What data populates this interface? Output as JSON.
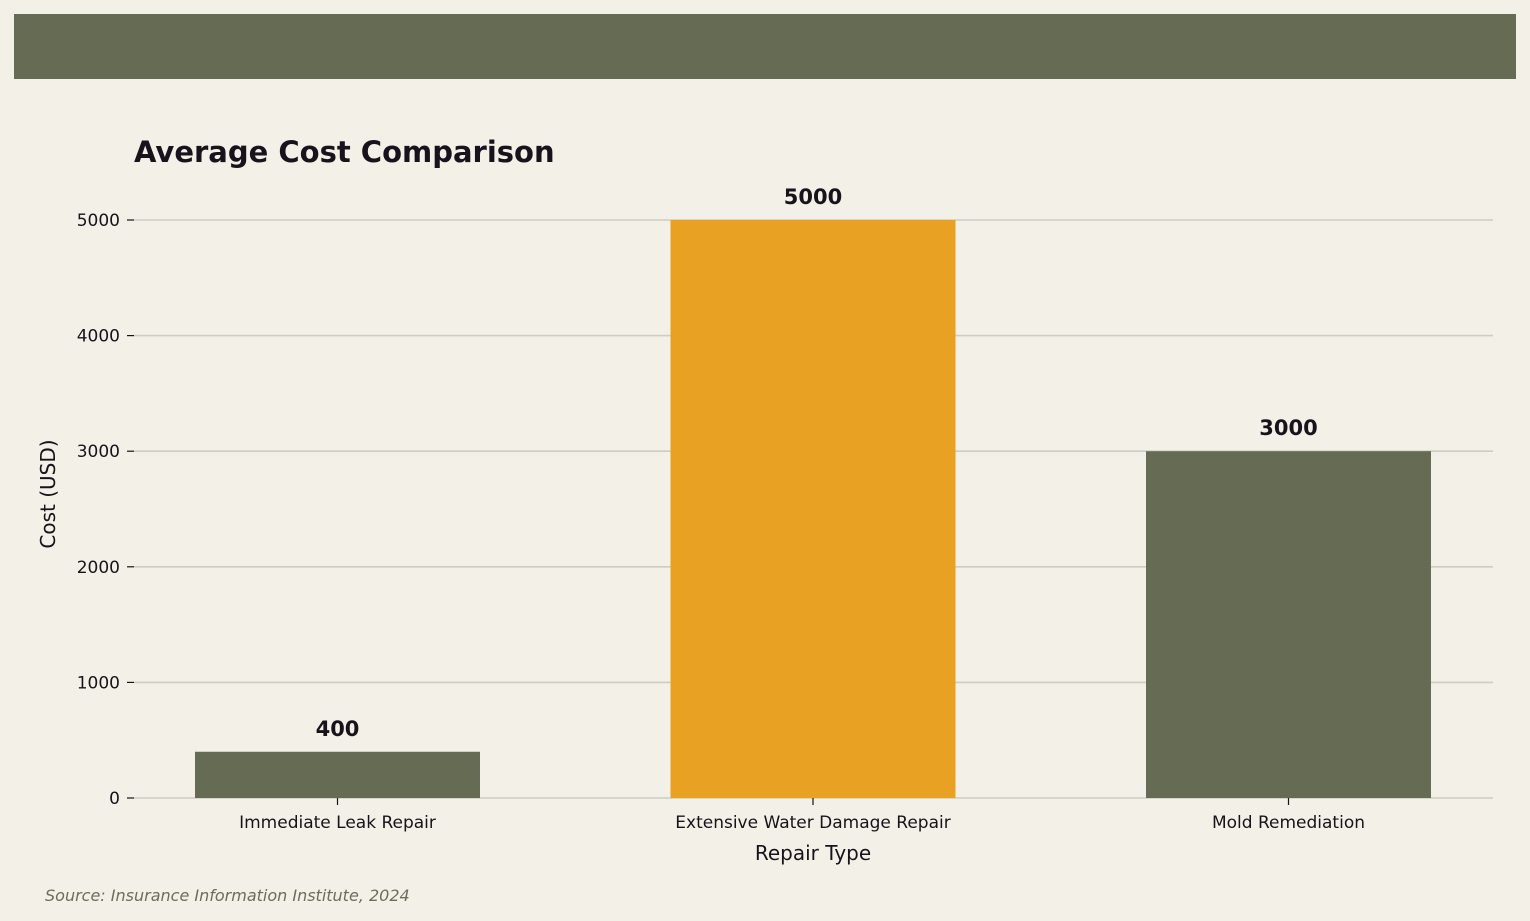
{
  "chart_data": {
    "type": "bar",
    "title": "Average Cost Comparison",
    "xlabel": "Repair Type",
    "ylabel": "Cost (USD)",
    "categories": [
      "Immediate Leak Repair",
      "Extensive Water Damage Repair",
      "Mold Remediation"
    ],
    "values": [
      400,
      5000,
      3000
    ],
    "data_labels": [
      "400",
      "5000",
      "3000"
    ],
    "ylim": [
      0,
      5000
    ],
    "yticks": [
      0,
      1000,
      2000,
      3000,
      4000,
      5000
    ],
    "grid": true,
    "bar_colors": [
      "#666b54",
      "#e8a123",
      "#666b54"
    ]
  },
  "footer": {
    "source": "Source: Insurance Information Institute, 2024"
  },
  "colors": {
    "background": "#f3f0e7",
    "banner": "#666b54",
    "accent": "#e8a123",
    "grid": "#cfcdc0",
    "text": "#17131c"
  }
}
